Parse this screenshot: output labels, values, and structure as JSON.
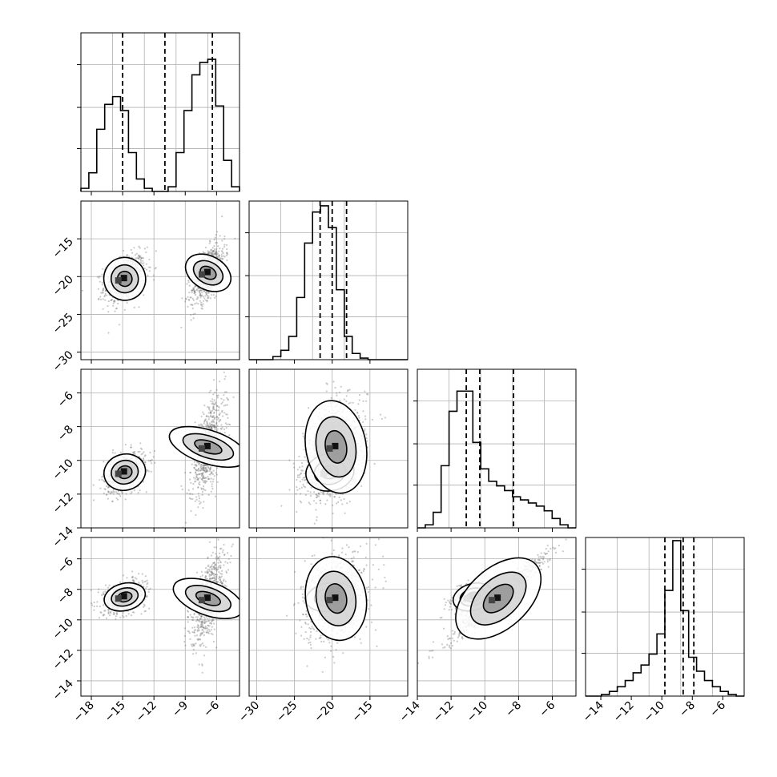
{
  "chart_data": {
    "type": "corner",
    "grid": true,
    "colors": {
      "line": "#000000",
      "grid": "#b0b0b0",
      "scatter": "#666666",
      "fill": "#808080"
    },
    "bins": 20,
    "parameters": [
      {
        "range": [
          -19.0,
          -3.8
        ],
        "ticks": [
          -18,
          -15,
          -12,
          -9,
          -6
        ],
        "tick_labels": [
          "−18",
          "−15",
          "−12",
          "−9",
          "−6"
        ]
      },
      {
        "range": [
          -31.0,
          -10.0
        ],
        "ticks": [
          -30,
          -25,
          -20,
          -15
        ],
        "tick_labels": [
          "−30",
          "−25",
          "−20",
          "−15"
        ]
      },
      {
        "range": [
          -14.0,
          -4.6
        ],
        "ticks": [
          -14,
          -12,
          -10,
          -8,
          -6
        ],
        "tick_labels": [
          "−14",
          "−12",
          "−10",
          "−8",
          "−6"
        ]
      },
      {
        "range": [
          -15.0,
          -4.6
        ],
        "ticks": [
          -14,
          -12,
          -10,
          -8,
          -6
        ],
        "tick_labels": [
          "−14",
          "−12",
          "−10",
          "−8",
          "−6"
        ]
      }
    ],
    "histograms": [
      {
        "index": 0,
        "counts": [
          0.02,
          0.12,
          0.4,
          0.56,
          0.61,
          0.52,
          0.25,
          0.08,
          0.02,
          0,
          0,
          0.03,
          0.25,
          0.52,
          0.75,
          0.83,
          0.85,
          0.55,
          0.2,
          0.03
        ],
        "quantiles": [
          -15.0,
          -10.95,
          -6.4
        ]
      },
      {
        "index": 1,
        "counts": [
          0,
          0,
          0,
          0.02,
          0.06,
          0.15,
          0.4,
          0.75,
          0.95,
          0.99,
          0.85,
          0.45,
          0.15,
          0.04,
          0.01,
          0,
          0,
          0,
          0,
          0
        ],
        "quantiles": [
          -21.6,
          -20.0,
          -18.1
        ]
      },
      {
        "index": 2,
        "counts": [
          0,
          0.02,
          0.1,
          0.4,
          0.75,
          0.88,
          0.88,
          0.55,
          0.38,
          0.3,
          0.27,
          0.24,
          0.2,
          0.18,
          0.16,
          0.14,
          0.11,
          0.06,
          0.02,
          0
        ],
        "quantiles": [
          -11.1,
          -10.3,
          -8.3
        ]
      },
      {
        "index": 3,
        "counts": [
          0,
          0,
          0.01,
          0.03,
          0.06,
          0.1,
          0.15,
          0.2,
          0.27,
          0.4,
          0.68,
          1.0,
          0.55,
          0.25,
          0.16,
          0.1,
          0.06,
          0.03,
          0.01,
          0
        ],
        "quantiles": [
          -9.8,
          -8.6,
          -7.9
        ]
      }
    ],
    "mixture_components": [
      {
        "label": "",
        "mean": [
          -14.8,
          -20.3,
          -10.7,
          -8.5
        ],
        "sd": [
          1.0,
          1.6,
          0.6,
          0.5
        ]
      },
      {
        "label": "",
        "mean": [
          -6.8,
          -19.5,
          -9.2,
          -8.6
        ],
        "sd": [
          0.8,
          2.0,
          1.5,
          1.5
        ]
      }
    ]
  }
}
